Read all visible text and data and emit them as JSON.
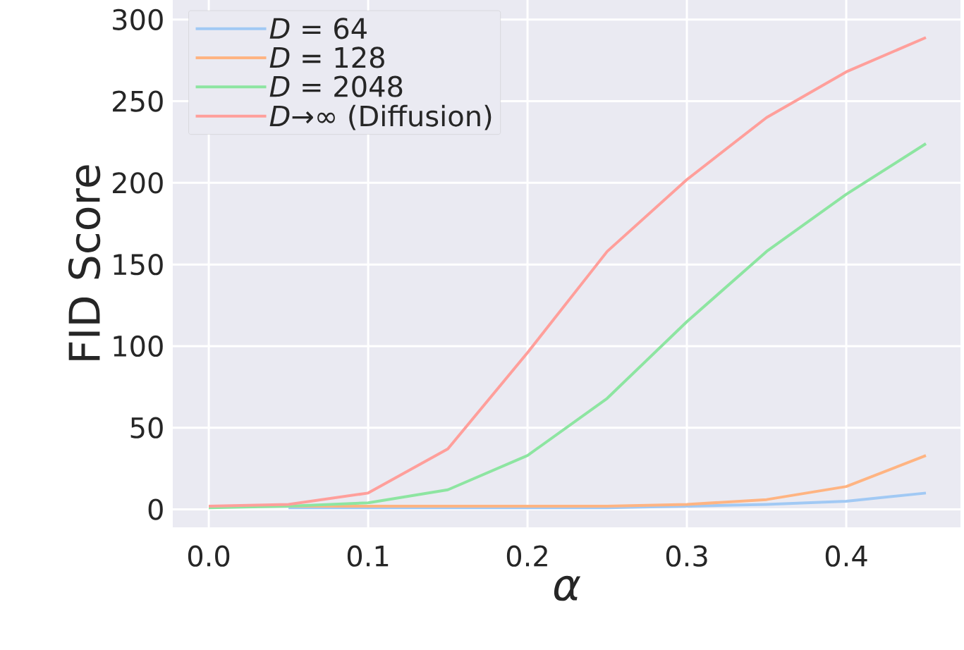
{
  "chart_data": {
    "type": "line",
    "xlabel": "α",
    "ylabel": "FID Score",
    "x": [
      0.0,
      0.05,
      0.1,
      0.15,
      0.2,
      0.25,
      0.3,
      0.35,
      0.4,
      0.45
    ],
    "series": [
      {
        "name": "*D* = 64",
        "color": "#a1c9f4",
        "values": [
          null,
          1,
          1,
          1,
          1,
          1,
          2,
          3,
          5,
          10
        ]
      },
      {
        "name": "*D* = 128",
        "color": "#ffb482",
        "values": [
          2,
          2,
          2,
          2,
          2,
          2,
          3,
          6,
          14,
          33
        ]
      },
      {
        "name": "*D* = 2048",
        "color": "#8de5a1",
        "values": [
          1,
          2,
          4,
          12,
          33,
          68,
          115,
          158,
          193,
          224
        ]
      },
      {
        "name": "*D*→∞ (Diffusion)",
        "color": "#ff9f9b",
        "values": [
          2,
          3,
          10,
          37,
          96,
          158,
          202,
          240,
          268,
          289
        ]
      }
    ],
    "xlim": [
      -0.0226,
      0.4717
    ],
    "ylim": [
      -11,
      312
    ],
    "xticks": [
      {
        "value": 0.0,
        "label": "0.0"
      },
      0.1,
      0.2,
      0.3,
      0.4
    ],
    "yticks": [
      0,
      50,
      100,
      150,
      200,
      250,
      300
    ],
    "grid": true,
    "legend": "top left",
    "marker": "none",
    "line_style": "solid"
  }
}
